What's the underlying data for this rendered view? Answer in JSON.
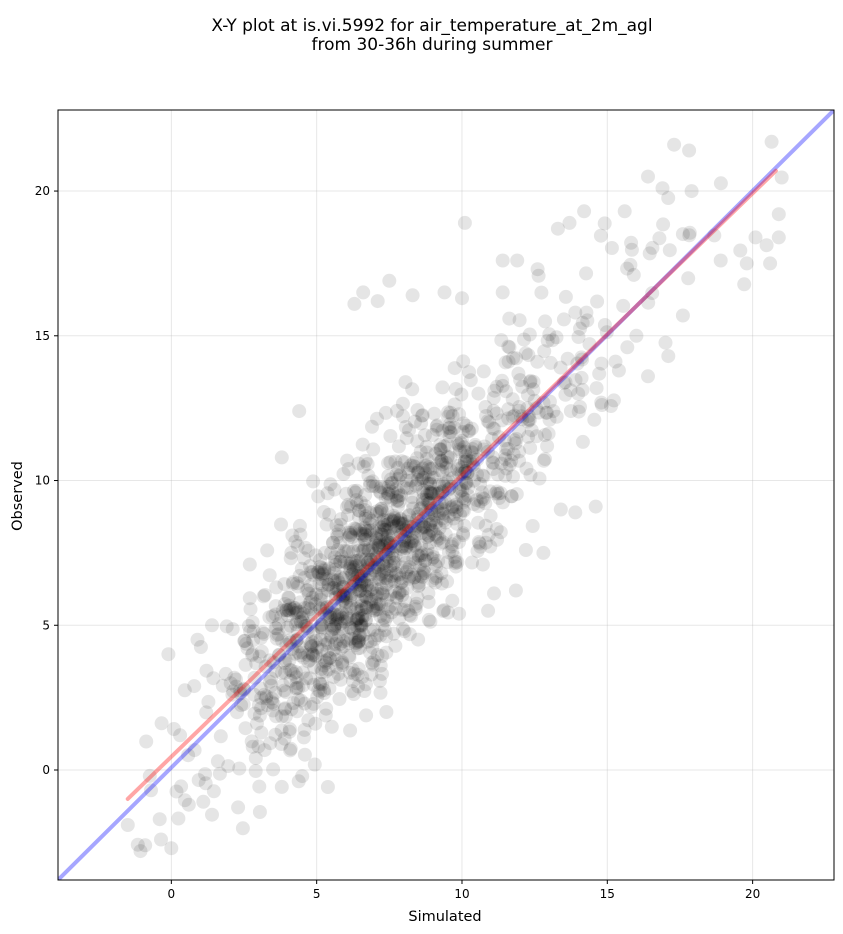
{
  "chart_data": {
    "type": "scatter",
    "title": "X-Y plot at is.vi.5992 for air_temperature_at_2m_agl",
    "subtitle": "from 30-36h during summer",
    "xlabel": "Simulated",
    "ylabel": "Observed",
    "xlim": [
      -3.9,
      22.8
    ],
    "ylim": [
      -3.8,
      22.8
    ],
    "xticks": [
      0,
      5,
      10,
      15,
      20
    ],
    "yticks": [
      0,
      5,
      10,
      15,
      20
    ],
    "grid": true,
    "point_color": "#000000",
    "point_alpha": 0.1,
    "n_points": 1500,
    "fit_lines": [
      {
        "color": "#0000ff",
        "alpha": 0.35,
        "x": [
          -3.9,
          22.8
        ],
        "y": [
          -3.8,
          22.8
        ]
      },
      {
        "color": "#ff0000",
        "alpha": 0.35,
        "x": [
          -1.5,
          20.8
        ],
        "y": [
          -1.0,
          20.7
        ]
      }
    ],
    "density_note": "points concentrated around (7, 7); spread roughly +/-3 about the 1:1 line",
    "sample_points": [
      [
        17.3,
        21.6
      ],
      [
        16.4,
        20.5
      ],
      [
        16.9,
        20.1
      ],
      [
        17.9,
        20.0
      ],
      [
        15.6,
        19.3
      ],
      [
        14.2,
        19.3
      ],
      [
        20.9,
        19.2
      ],
      [
        13.7,
        18.9
      ],
      [
        10.1,
        18.9
      ],
      [
        20.1,
        18.4
      ],
      [
        20.9,
        18.4
      ],
      [
        13.3,
        18.7
      ],
      [
        11.4,
        17.6
      ],
      [
        11.9,
        17.6
      ],
      [
        18.9,
        17.6
      ],
      [
        19.8,
        17.5
      ],
      [
        20.6,
        17.5
      ],
      [
        12.6,
        17.3
      ],
      [
        7.5,
        16.9
      ],
      [
        8.3,
        16.4
      ],
      [
        6.6,
        16.5
      ],
      [
        7.1,
        16.2
      ],
      [
        6.3,
        16.1
      ],
      [
        9.4,
        16.5
      ],
      [
        10.0,
        16.3
      ],
      [
        11.4,
        16.5
      ],
      [
        17.6,
        15.7
      ],
      [
        13.9,
        15.8
      ],
      [
        16.4,
        13.6
      ],
      [
        17.1,
        14.3
      ],
      [
        4.4,
        12.4
      ],
      [
        3.8,
        10.8
      ],
      [
        2.7,
        7.1
      ],
      [
        1.4,
        5.0
      ],
      [
        0.9,
        4.5
      ],
      [
        -0.1,
        4.0
      ],
      [
        0.3,
        1.2
      ],
      [
        -0.7,
        -0.7
      ],
      [
        -0.4,
        -1.7
      ],
      [
        -1.5,
        -1.9
      ],
      [
        -0.9,
        -2.6
      ],
      [
        0.0,
        -2.7
      ],
      [
        0.6,
        -1.2
      ],
      [
        1.1,
        -1.1
      ],
      [
        2.8,
        0.8
      ],
      [
        3.9,
        2.1
      ],
      [
        5.1,
        3.0
      ],
      [
        6.9,
        3.7
      ],
      [
        9.9,
        5.4
      ],
      [
        10.9,
        5.5
      ],
      [
        11.1,
        6.1
      ],
      [
        12.2,
        7.6
      ],
      [
        12.8,
        7.5
      ],
      [
        13.9,
        8.9
      ],
      [
        14.6,
        9.1
      ],
      [
        13.4,
        9.0
      ],
      [
        14.0,
        13.0
      ],
      [
        15.4,
        13.8
      ],
      [
        16.0,
        15.0
      ],
      [
        12.3,
        12.1
      ],
      [
        7.0,
        7.0
      ],
      [
        7.4,
        6.4
      ],
      [
        6.5,
        6.2
      ],
      [
        8.0,
        7.4
      ],
      [
        5.5,
        5.0
      ],
      [
        4.8,
        4.3
      ],
      [
        6.1,
        8.2
      ],
      [
        8.9,
        9.9
      ],
      [
        9.6,
        10.8
      ],
      [
        3.2,
        2.6
      ],
      [
        2.1,
        2.6
      ],
      [
        1.6,
        0.3
      ]
    ]
  }
}
